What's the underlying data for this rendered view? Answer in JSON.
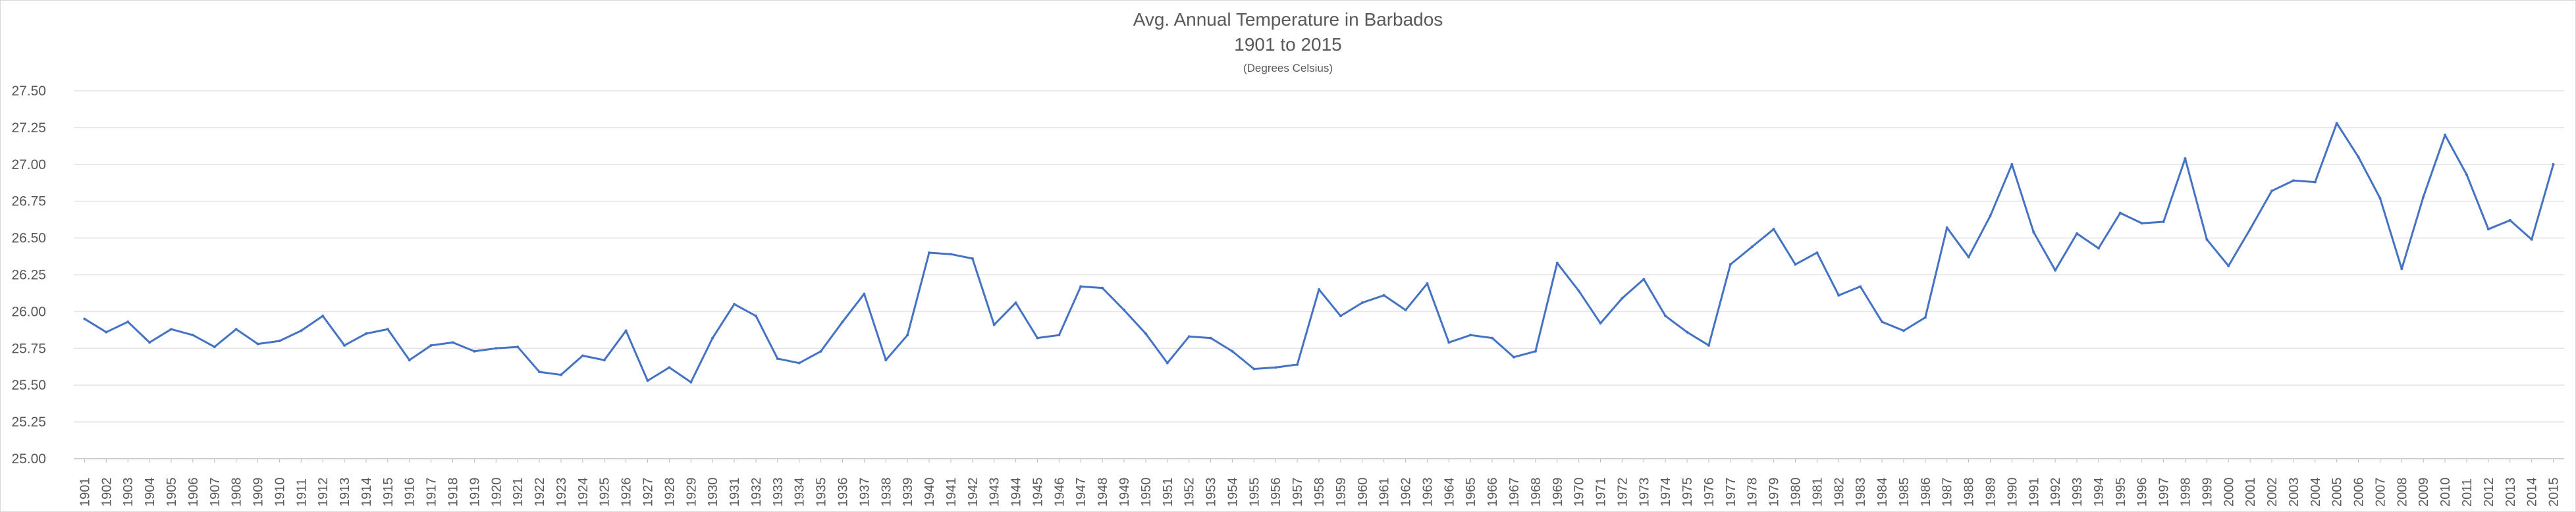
{
  "chart_data": {
    "type": "line",
    "title": "Avg. Annual Temperature in Barbados",
    "subtitle": "1901 to 2015",
    "units_note": "(Degrees Celsius)",
    "xlabel": "",
    "ylabel": "",
    "ylim": [
      25.0,
      27.5
    ],
    "y_ticks": [
      "25.00",
      "25.25",
      "25.50",
      "25.75",
      "26.00",
      "26.25",
      "26.50",
      "26.75",
      "27.00",
      "27.25",
      "27.50"
    ],
    "grid": true,
    "line_color": "#4472c4",
    "x": [
      1901,
      1902,
      1903,
      1904,
      1905,
      1906,
      1907,
      1908,
      1909,
      1910,
      1911,
      1912,
      1913,
      1914,
      1915,
      1916,
      1917,
      1918,
      1919,
      1920,
      1921,
      1922,
      1923,
      1924,
      1925,
      1926,
      1927,
      1928,
      1929,
      1930,
      1931,
      1932,
      1933,
      1934,
      1935,
      1936,
      1937,
      1938,
      1939,
      1940,
      1941,
      1942,
      1943,
      1944,
      1945,
      1946,
      1947,
      1948,
      1949,
      1950,
      1951,
      1952,
      1953,
      1954,
      1955,
      1956,
      1957,
      1958,
      1959,
      1960,
      1961,
      1962,
      1963,
      1964,
      1965,
      1966,
      1967,
      1968,
      1969,
      1970,
      1971,
      1972,
      1973,
      1974,
      1975,
      1976,
      1977,
      1978,
      1979,
      1980,
      1981,
      1982,
      1983,
      1984,
      1985,
      1986,
      1987,
      1988,
      1989,
      1990,
      1991,
      1992,
      1993,
      1994,
      1995,
      1996,
      1997,
      1998,
      1999,
      2000,
      2001,
      2002,
      2003,
      2004,
      2005,
      2006,
      2007,
      2008,
      2009,
      2010,
      2011,
      2012,
      2013,
      2014,
      2015
    ],
    "values": [
      25.95,
      25.86,
      25.93,
      25.79,
      25.88,
      25.84,
      25.76,
      25.88,
      25.78,
      25.8,
      25.87,
      25.97,
      25.77,
      25.85,
      25.88,
      25.67,
      25.77,
      25.79,
      25.73,
      25.75,
      25.76,
      25.59,
      25.57,
      25.7,
      25.67,
      25.87,
      25.53,
      25.62,
      25.52,
      25.82,
      26.05,
      25.97,
      25.68,
      25.65,
      25.73,
      25.93,
      26.12,
      25.67,
      25.84,
      26.4,
      26.39,
      26.36,
      25.91,
      26.06,
      25.82,
      25.84,
      26.17,
      26.16,
      26.01,
      25.85,
      25.65,
      25.83,
      25.82,
      25.73,
      25.61,
      25.62,
      25.64,
      26.15,
      25.97,
      26.06,
      26.11,
      26.01,
      26.19,
      25.79,
      25.84,
      25.82,
      25.69,
      25.73,
      26.33,
      26.14,
      25.92,
      26.09,
      26.22,
      25.97,
      25.86,
      25.77,
      26.32,
      26.44,
      26.56,
      26.32,
      26.4,
      26.11,
      26.17,
      25.93,
      25.87,
      25.96,
      26.57,
      26.37,
      26.65,
      27.0,
      26.54,
      26.28,
      26.53,
      26.43,
      26.67,
      26.6,
      26.61,
      27.04,
      26.49,
      26.31,
      26.56,
      26.82,
      26.89,
      26.88,
      27.28,
      27.05,
      26.77,
      26.29,
      26.78,
      27.2,
      26.93,
      26.56,
      26.62,
      26.49,
      27.0
    ]
  }
}
